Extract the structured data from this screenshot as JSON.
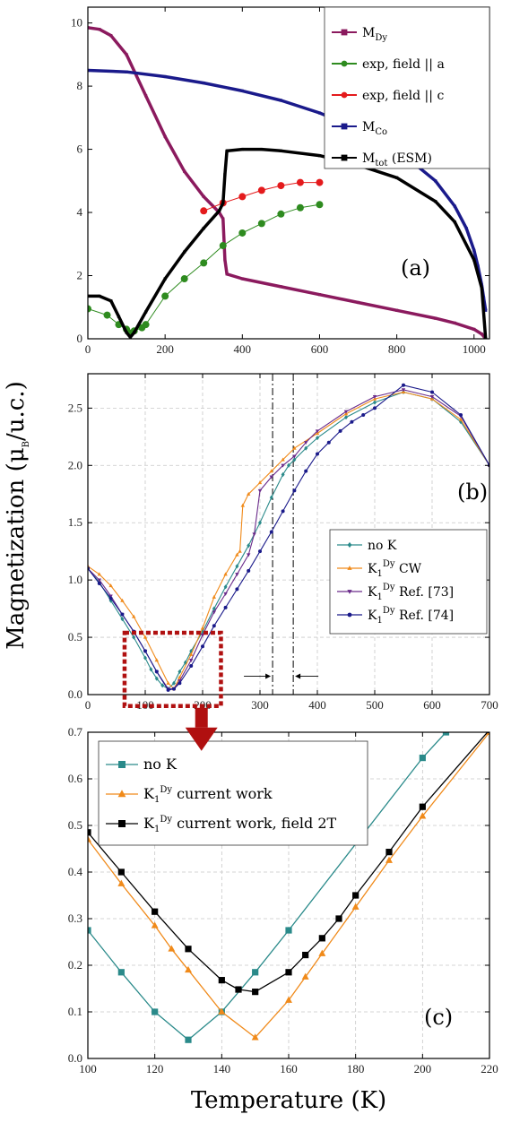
{
  "y_axis_label": "Magnetization (μB/u.c.)",
  "y_axis_label_parts": {
    "base": "Magnetization (μ",
    "sub": "B",
    "tail": "/u.c.)"
  },
  "x_axis_label": "Temperature (K)",
  "colors": {
    "magenta": "#8b1a5e",
    "green": "#2e8b1f",
    "red": "#e41a1c",
    "navy": "#1a1a8b",
    "black": "#000000",
    "teal": "#2a8a8a",
    "orange": "#f08a1a",
    "purple": "#6a2a8a",
    "blue": "#1a1a8a",
    "box": "#b01010"
  },
  "chart_data": [
    {
      "panel_label": "(a)",
      "type": "line",
      "xlim": [
        0,
        1040
      ],
      "ylim": [
        0,
        10.5
      ],
      "xticks": [
        0,
        200,
        400,
        600,
        800,
        1000
      ],
      "yticks": [
        0,
        2,
        4,
        6,
        8,
        10
      ],
      "grid": false,
      "legend_position": "top-right",
      "series": [
        {
          "name": "M_Dy",
          "label_base": "M",
          "label_sub": "Dy",
          "label_tail": "",
          "color": "#8b1a5e",
          "marker": "square",
          "width": 3.5,
          "x": [
            0,
            30,
            60,
            100,
            150,
            200,
            250,
            300,
            340,
            350,
            355,
            360,
            400,
            500,
            600,
            700,
            800,
            900,
            950,
            1000,
            1020,
            1030
          ],
          "y": [
            9.85,
            9.8,
            9.6,
            9.0,
            7.7,
            6.4,
            5.3,
            4.5,
            4.0,
            3.8,
            2.5,
            2.05,
            1.9,
            1.65,
            1.4,
            1.15,
            0.9,
            0.65,
            0.5,
            0.3,
            0.15,
            0.0
          ]
        },
        {
          "name": "exp, field || a",
          "label_base": "exp, field || a",
          "label_sub": "",
          "label_tail": "",
          "color": "#2e8b1f",
          "marker": "circle",
          "width": 1,
          "x": [
            0,
            50,
            80,
            100,
            110,
            120,
            140,
            150,
            200,
            250,
            300,
            350,
            400,
            450,
            500,
            550,
            600
          ],
          "y": [
            0.95,
            0.75,
            0.45,
            0.3,
            0.18,
            0.25,
            0.35,
            0.45,
            1.35,
            1.9,
            2.4,
            2.95,
            3.35,
            3.65,
            3.95,
            4.15,
            4.25
          ]
        },
        {
          "name": "exp, field || c",
          "label_base": "exp, field || c",
          "label_sub": "",
          "label_tail": "",
          "color": "#e41a1c",
          "marker": "circle",
          "width": 1,
          "x": [
            300,
            350,
            400,
            450,
            500,
            550,
            600
          ],
          "y": [
            4.05,
            4.3,
            4.5,
            4.7,
            4.85,
            4.95,
            4.95
          ]
        },
        {
          "name": "M_Co",
          "label_base": "M",
          "label_sub": "Co",
          "label_tail": "",
          "color": "#1a1a8b",
          "marker": "square",
          "width": 3.5,
          "x": [
            0,
            100,
            200,
            300,
            400,
            500,
            600,
            700,
            800,
            900,
            950,
            980,
            1000,
            1010,
            1020,
            1025,
            1030
          ],
          "y": [
            8.5,
            8.45,
            8.3,
            8.1,
            7.85,
            7.55,
            7.15,
            6.65,
            6.0,
            5.0,
            4.2,
            3.5,
            2.8,
            2.3,
            1.7,
            1.3,
            0.9
          ]
        },
        {
          "name": "M_tot (ESM)",
          "label_base": "M",
          "label_sub": "tot",
          "label_tail": " (ESM)",
          "color": "#000000",
          "marker": "square",
          "width": 3.5,
          "x": [
            0,
            30,
            60,
            80,
            100,
            110,
            120,
            150,
            200,
            250,
            300,
            340,
            350,
            355,
            360,
            400,
            450,
            500,
            600,
            700,
            800,
            900,
            950,
            1000,
            1020,
            1030
          ],
          "y": [
            1.35,
            1.35,
            1.2,
            0.7,
            0.2,
            0.05,
            0.2,
            0.85,
            1.9,
            2.75,
            3.5,
            4.05,
            4.3,
            5.2,
            5.95,
            6.0,
            6.0,
            5.95,
            5.8,
            5.5,
            5.1,
            4.35,
            3.7,
            2.5,
            1.6,
            0.0
          ]
        }
      ]
    },
    {
      "panel_label": "(b)",
      "type": "line",
      "xlim": [
        0,
        700
      ],
      "ylim": [
        0,
        2.8
      ],
      "xticks": [
        0,
        100,
        200,
        300,
        400,
        500,
        600,
        700
      ],
      "yticks": [
        0.0,
        0.5,
        1.0,
        1.5,
        2.0,
        2.5
      ],
      "grid": true,
      "legend_position": "middle-right",
      "vlines": [
        322,
        358
      ],
      "series": [
        {
          "name": "no K",
          "label_base": "no K",
          "label_sup": "",
          "label_tail": "",
          "color": "#2a8a8a",
          "marker": "diamond",
          "x": [
            0,
            20,
            40,
            60,
            80,
            100,
            110,
            120,
            130,
            140,
            150,
            160,
            170,
            180,
            200,
            220,
            240,
            260,
            280,
            300,
            320,
            340,
            350,
            360,
            380,
            400,
            450,
            500,
            550,
            600,
            650,
            700
          ],
          "y": [
            1.1,
            0.98,
            0.82,
            0.66,
            0.5,
            0.32,
            0.22,
            0.14,
            0.08,
            0.05,
            0.1,
            0.2,
            0.28,
            0.38,
            0.55,
            0.75,
            0.94,
            1.12,
            1.3,
            1.5,
            1.72,
            1.92,
            2.0,
            2.05,
            2.15,
            2.24,
            2.42,
            2.55,
            2.64,
            2.58,
            2.38,
            2.0
          ]
        },
        {
          "name": "K1Dy CW",
          "label_base": "K",
          "label_sub": "1",
          "label_sup": "Dy",
          "label_tail": " CW",
          "color": "#f08a1a",
          "marker": "triangle",
          "x": [
            0,
            20,
            40,
            60,
            80,
            100,
            120,
            140,
            150,
            160,
            180,
            200,
            220,
            240,
            260,
            265,
            270,
            280,
            300,
            320,
            340,
            360,
            400,
            450,
            500,
            550,
            600,
            650,
            700
          ],
          "y": [
            1.12,
            1.05,
            0.95,
            0.82,
            0.68,
            0.5,
            0.3,
            0.1,
            0.05,
            0.15,
            0.35,
            0.58,
            0.85,
            1.05,
            1.22,
            1.25,
            1.65,
            1.75,
            1.85,
            1.95,
            2.05,
            2.15,
            2.28,
            2.45,
            2.58,
            2.64,
            2.58,
            2.4,
            2.0
          ]
        },
        {
          "name": "K1Dy Ref. [73]",
          "label_base": "K",
          "label_sub": "1",
          "label_sup": "Dy",
          "label_tail": " Ref. [73]",
          "color": "#6a2a8a",
          "marker": "triangle-down",
          "x": [
            0,
            20,
            40,
            60,
            80,
            100,
            120,
            140,
            150,
            160,
            180,
            200,
            220,
            240,
            260,
            280,
            290,
            300,
            320,
            340,
            360,
            380,
            400,
            450,
            500,
            550,
            600,
            650,
            700
          ],
          "y": [
            1.1,
            1.0,
            0.86,
            0.7,
            0.55,
            0.38,
            0.2,
            0.05,
            0.05,
            0.12,
            0.3,
            0.52,
            0.72,
            0.88,
            1.05,
            1.22,
            1.4,
            1.78,
            1.9,
            2.0,
            2.08,
            2.2,
            2.3,
            2.47,
            2.6,
            2.66,
            2.6,
            2.43,
            2.0
          ]
        },
        {
          "name": "K1Dy Ref. [74]",
          "label_base": "K",
          "label_sub": "1",
          "label_sup": "Dy",
          "label_tail": " Ref. [74]",
          "color": "#1a1a8a",
          "marker": "circle",
          "x": [
            0,
            20,
            40,
            60,
            80,
            100,
            120,
            140,
            150,
            160,
            180,
            200,
            220,
            240,
            260,
            280,
            300,
            320,
            340,
            360,
            380,
            400,
            420,
            440,
            460,
            480,
            500,
            550,
            600,
            650,
            700
          ],
          "y": [
            1.1,
            0.97,
            0.84,
            0.7,
            0.55,
            0.38,
            0.2,
            0.04,
            0.05,
            0.1,
            0.25,
            0.42,
            0.6,
            0.76,
            0.92,
            1.08,
            1.25,
            1.42,
            1.6,
            1.78,
            1.95,
            2.1,
            2.2,
            2.3,
            2.38,
            2.44,
            2.5,
            2.7,
            2.64,
            2.44,
            2.0
          ]
        }
      ]
    },
    {
      "panel_label": "(c)",
      "type": "line",
      "xlim": [
        100,
        220
      ],
      "ylim": [
        0.0,
        0.7
      ],
      "xticks": [
        100,
        120,
        140,
        160,
        180,
        200,
        220
      ],
      "yticks": [
        0.0,
        0.1,
        0.2,
        0.3,
        0.4,
        0.5,
        0.6,
        0.7
      ],
      "grid": true,
      "legend_position": "top-left",
      "series": [
        {
          "name": "no K",
          "label_base": "no K",
          "label_sup": "",
          "label_tail": "",
          "color": "#2a8a8a",
          "marker": "square",
          "x": [
            100,
            110,
            120,
            130,
            140,
            150,
            160,
            200,
            207
          ],
          "y": [
            0.275,
            0.185,
            0.1,
            0.04,
            0.1,
            0.185,
            0.275,
            0.645,
            0.7
          ]
        },
        {
          "name": "K1Dy current work",
          "label_base": "K",
          "label_sub": "1",
          "label_sup": "Dy",
          "label_tail": " current work",
          "color": "#f08a1a",
          "marker": "triangle",
          "x": [
            100,
            110,
            120,
            125,
            130,
            140,
            150,
            160,
            165,
            170,
            180,
            190,
            200,
            220
          ],
          "y": [
            0.47,
            0.375,
            0.285,
            0.235,
            0.19,
            0.1,
            0.045,
            0.125,
            0.175,
            0.225,
            0.325,
            0.425,
            0.52,
            0.7
          ]
        },
        {
          "name": "K1Dy current work, field 2T",
          "label_base": "K",
          "label_sub": "1",
          "label_sup": "Dy",
          "label_tail": " current work, field 2T",
          "color": "#000000",
          "marker": "square",
          "x": [
            100,
            110,
            120,
            130,
            140,
            145,
            150,
            160,
            165,
            170,
            175,
            180,
            190,
            200,
            220
          ],
          "y": [
            0.485,
            0.4,
            0.315,
            0.235,
            0.168,
            0.148,
            0.143,
            0.185,
            0.222,
            0.258,
            0.3,
            0.35,
            0.443,
            0.54,
            0.705
          ]
        }
      ]
    }
  ]
}
